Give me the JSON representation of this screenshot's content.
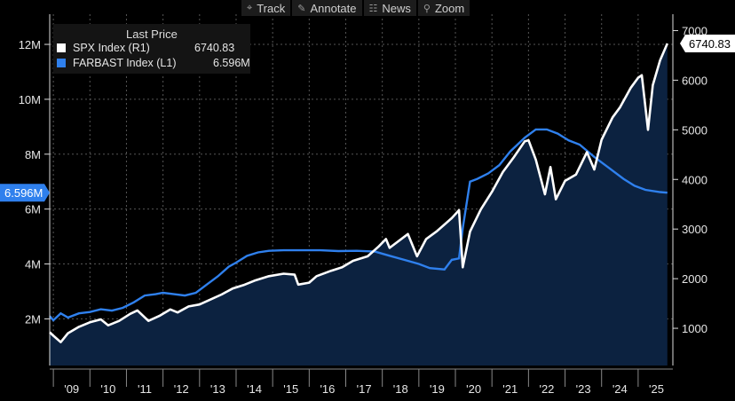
{
  "toolbar": {
    "items": [
      {
        "label": "Track",
        "icon": "crosshair-icon",
        "glyph": "⌖"
      },
      {
        "label": "Annotate",
        "icon": "pencil-icon",
        "glyph": "✎"
      },
      {
        "label": "News",
        "icon": "newspaper-icon",
        "glyph": "☷"
      },
      {
        "label": "Zoom",
        "icon": "zoom-icon",
        "glyph": "⚲"
      }
    ]
  },
  "legend": {
    "title": "Last Price",
    "series": [
      {
        "name": "SPX Index  (R1)",
        "value": "6740.83",
        "color": "#ffffff"
      },
      {
        "name": "FARBAST Index  (L1)",
        "value": "6.596M",
        "color": "#2f80ed"
      }
    ]
  },
  "chart_data": {
    "type": "line",
    "x_labels": [
      "'09",
      "'10",
      "'11",
      "'12",
      "'13",
      "'14",
      "'15",
      "'16",
      "'17",
      "'18",
      "'19",
      "'20",
      "'21",
      "'22",
      "'23",
      "'24",
      "'25"
    ],
    "left_axis": {
      "ticks": [
        "2M",
        "4M",
        "6M",
        "8M",
        "10M",
        "12M"
      ],
      "tick_values": [
        2,
        4,
        6,
        8,
        10,
        12
      ],
      "unit": "M",
      "range": [
        0.3,
        13.1
      ]
    },
    "right_axis": {
      "ticks": [
        "1000",
        "2000",
        "3000",
        "4000",
        "5000",
        "6000",
        "7000"
      ],
      "tick_values": [
        1000,
        2000,
        3000,
        4000,
        5000,
        6000,
        7000
      ],
      "range": [
        250,
        7330
      ]
    },
    "last_value_tags": {
      "left": "6.596M",
      "right": "6740.83"
    },
    "series": [
      {
        "name": "FARBAST Index  (L1)",
        "axis": "left",
        "color": "#2f80ed",
        "area_fill": "#0c2240",
        "points": [
          [
            2008.9,
            2.1
          ],
          [
            2009.0,
            1.95
          ],
          [
            2009.2,
            2.2
          ],
          [
            2009.4,
            2.05
          ],
          [
            2009.7,
            2.2
          ],
          [
            2010.0,
            2.25
          ],
          [
            2010.3,
            2.35
          ],
          [
            2010.6,
            2.3
          ],
          [
            2010.9,
            2.4
          ],
          [
            2011.2,
            2.6
          ],
          [
            2011.5,
            2.85
          ],
          [
            2011.8,
            2.9
          ],
          [
            2012.0,
            2.95
          ],
          [
            2012.3,
            2.9
          ],
          [
            2012.6,
            2.85
          ],
          [
            2012.9,
            2.95
          ],
          [
            2013.2,
            3.25
          ],
          [
            2013.5,
            3.55
          ],
          [
            2013.8,
            3.9
          ],
          [
            2014.0,
            4.05
          ],
          [
            2014.3,
            4.3
          ],
          [
            2014.6,
            4.42
          ],
          [
            2014.9,
            4.48
          ],
          [
            2015.3,
            4.5
          ],
          [
            2015.8,
            4.5
          ],
          [
            2016.3,
            4.5
          ],
          [
            2016.8,
            4.47
          ],
          [
            2017.3,
            4.48
          ],
          [
            2017.8,
            4.45
          ],
          [
            2018.2,
            4.3
          ],
          [
            2018.6,
            4.15
          ],
          [
            2019.0,
            4.0
          ],
          [
            2019.3,
            3.85
          ],
          [
            2019.7,
            3.8
          ],
          [
            2019.9,
            4.15
          ],
          [
            2020.1,
            4.2
          ],
          [
            2020.2,
            5.3
          ],
          [
            2020.4,
            7.0
          ],
          [
            2020.6,
            7.1
          ],
          [
            2020.9,
            7.3
          ],
          [
            2021.2,
            7.6
          ],
          [
            2021.5,
            8.1
          ],
          [
            2021.9,
            8.6
          ],
          [
            2022.2,
            8.9
          ],
          [
            2022.5,
            8.9
          ],
          [
            2022.8,
            8.75
          ],
          [
            2023.1,
            8.5
          ],
          [
            2023.4,
            8.35
          ],
          [
            2023.8,
            7.9
          ],
          [
            2024.2,
            7.5
          ],
          [
            2024.6,
            7.1
          ],
          [
            2024.9,
            6.85
          ],
          [
            2025.2,
            6.7
          ],
          [
            2025.6,
            6.62
          ],
          [
            2025.8,
            6.596
          ]
        ]
      },
      {
        "name": "SPX Index  (R1)",
        "axis": "right",
        "color": "#ffffff",
        "points": [
          [
            2008.9,
            920
          ],
          [
            2009.0,
            850
          ],
          [
            2009.2,
            720
          ],
          [
            2009.4,
            900
          ],
          [
            2009.7,
            1030
          ],
          [
            2010.0,
            1120
          ],
          [
            2010.3,
            1180
          ],
          [
            2010.5,
            1060
          ],
          [
            2010.8,
            1150
          ],
          [
            2011.1,
            1290
          ],
          [
            2011.3,
            1360
          ],
          [
            2011.6,
            1150
          ],
          [
            2011.9,
            1250
          ],
          [
            2012.2,
            1380
          ],
          [
            2012.4,
            1320
          ],
          [
            2012.7,
            1440
          ],
          [
            2013.0,
            1480
          ],
          [
            2013.3,
            1580
          ],
          [
            2013.6,
            1680
          ],
          [
            2013.9,
            1800
          ],
          [
            2014.2,
            1870
          ],
          [
            2014.5,
            1960
          ],
          [
            2014.9,
            2050
          ],
          [
            2015.3,
            2100
          ],
          [
            2015.6,
            2080
          ],
          [
            2015.7,
            1880
          ],
          [
            2016.0,
            1920
          ],
          [
            2016.2,
            2050
          ],
          [
            2016.6,
            2160
          ],
          [
            2016.9,
            2230
          ],
          [
            2017.2,
            2360
          ],
          [
            2017.6,
            2450
          ],
          [
            2017.9,
            2650
          ],
          [
            2018.1,
            2800
          ],
          [
            2018.2,
            2620
          ],
          [
            2018.7,
            2900
          ],
          [
            2018.95,
            2450
          ],
          [
            2019.2,
            2800
          ],
          [
            2019.5,
            2960
          ],
          [
            2019.9,
            3220
          ],
          [
            2020.1,
            3380
          ],
          [
            2020.2,
            2230
          ],
          [
            2020.4,
            2950
          ],
          [
            2020.7,
            3400
          ],
          [
            2021.0,
            3750
          ],
          [
            2021.3,
            4150
          ],
          [
            2021.6,
            4450
          ],
          [
            2021.9,
            4770
          ],
          [
            2022.0,
            4790
          ],
          [
            2022.2,
            4400
          ],
          [
            2022.45,
            3700
          ],
          [
            2022.6,
            4250
          ],
          [
            2022.75,
            3600
          ],
          [
            2023.0,
            3970
          ],
          [
            2023.3,
            4100
          ],
          [
            2023.6,
            4550
          ],
          [
            2023.8,
            4200
          ],
          [
            2024.0,
            4800
          ],
          [
            2024.3,
            5250
          ],
          [
            2024.5,
            5450
          ],
          [
            2024.8,
            5850
          ],
          [
            2025.0,
            6050
          ],
          [
            2025.1,
            6100
          ],
          [
            2025.27,
            5000
          ],
          [
            2025.4,
            5900
          ],
          [
            2025.6,
            6400
          ],
          [
            2025.8,
            6740.83
          ]
        ]
      }
    ]
  }
}
